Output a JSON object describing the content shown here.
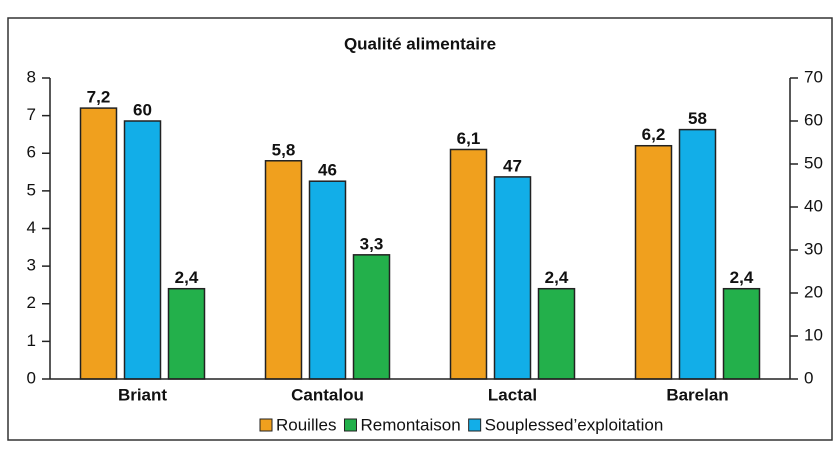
{
  "chart_data": {
    "type": "bar",
    "title": "Qualité alimentaire",
    "categories": [
      "Briant",
      "Cantalou",
      "Lactal",
      "Barelan"
    ],
    "series": [
      {
        "name": "Rouilles",
        "color": "#f0a01e",
        "values": [
          7.2,
          5.8,
          6.1,
          6.2
        ],
        "value_labels": [
          "7,2",
          "5,8",
          "6,1",
          "6,2"
        ]
      },
      {
        "name": "Souplessed’exploitation",
        "color": "#12aee8",
        "values": [
          60,
          46,
          47,
          58
        ],
        "axis": "y2"
      },
      {
        "name": "Remontaison",
        "color": "#23b04b",
        "values": [
          2.4,
          3.3,
          2.4,
          2.4
        ],
        "value_labels": [
          "2,4",
          "3,3",
          "2,4",
          "2,4"
        ]
      }
    ],
    "ylim": [
      0,
      8
    ],
    "yticks": [
      0,
      1,
      2,
      3,
      4,
      5,
      6,
      7,
      8
    ],
    "y2lim": [
      0,
      70
    ],
    "y2ticks": [
      0,
      10,
      20,
      30,
      40,
      50,
      60,
      70
    ]
  }
}
